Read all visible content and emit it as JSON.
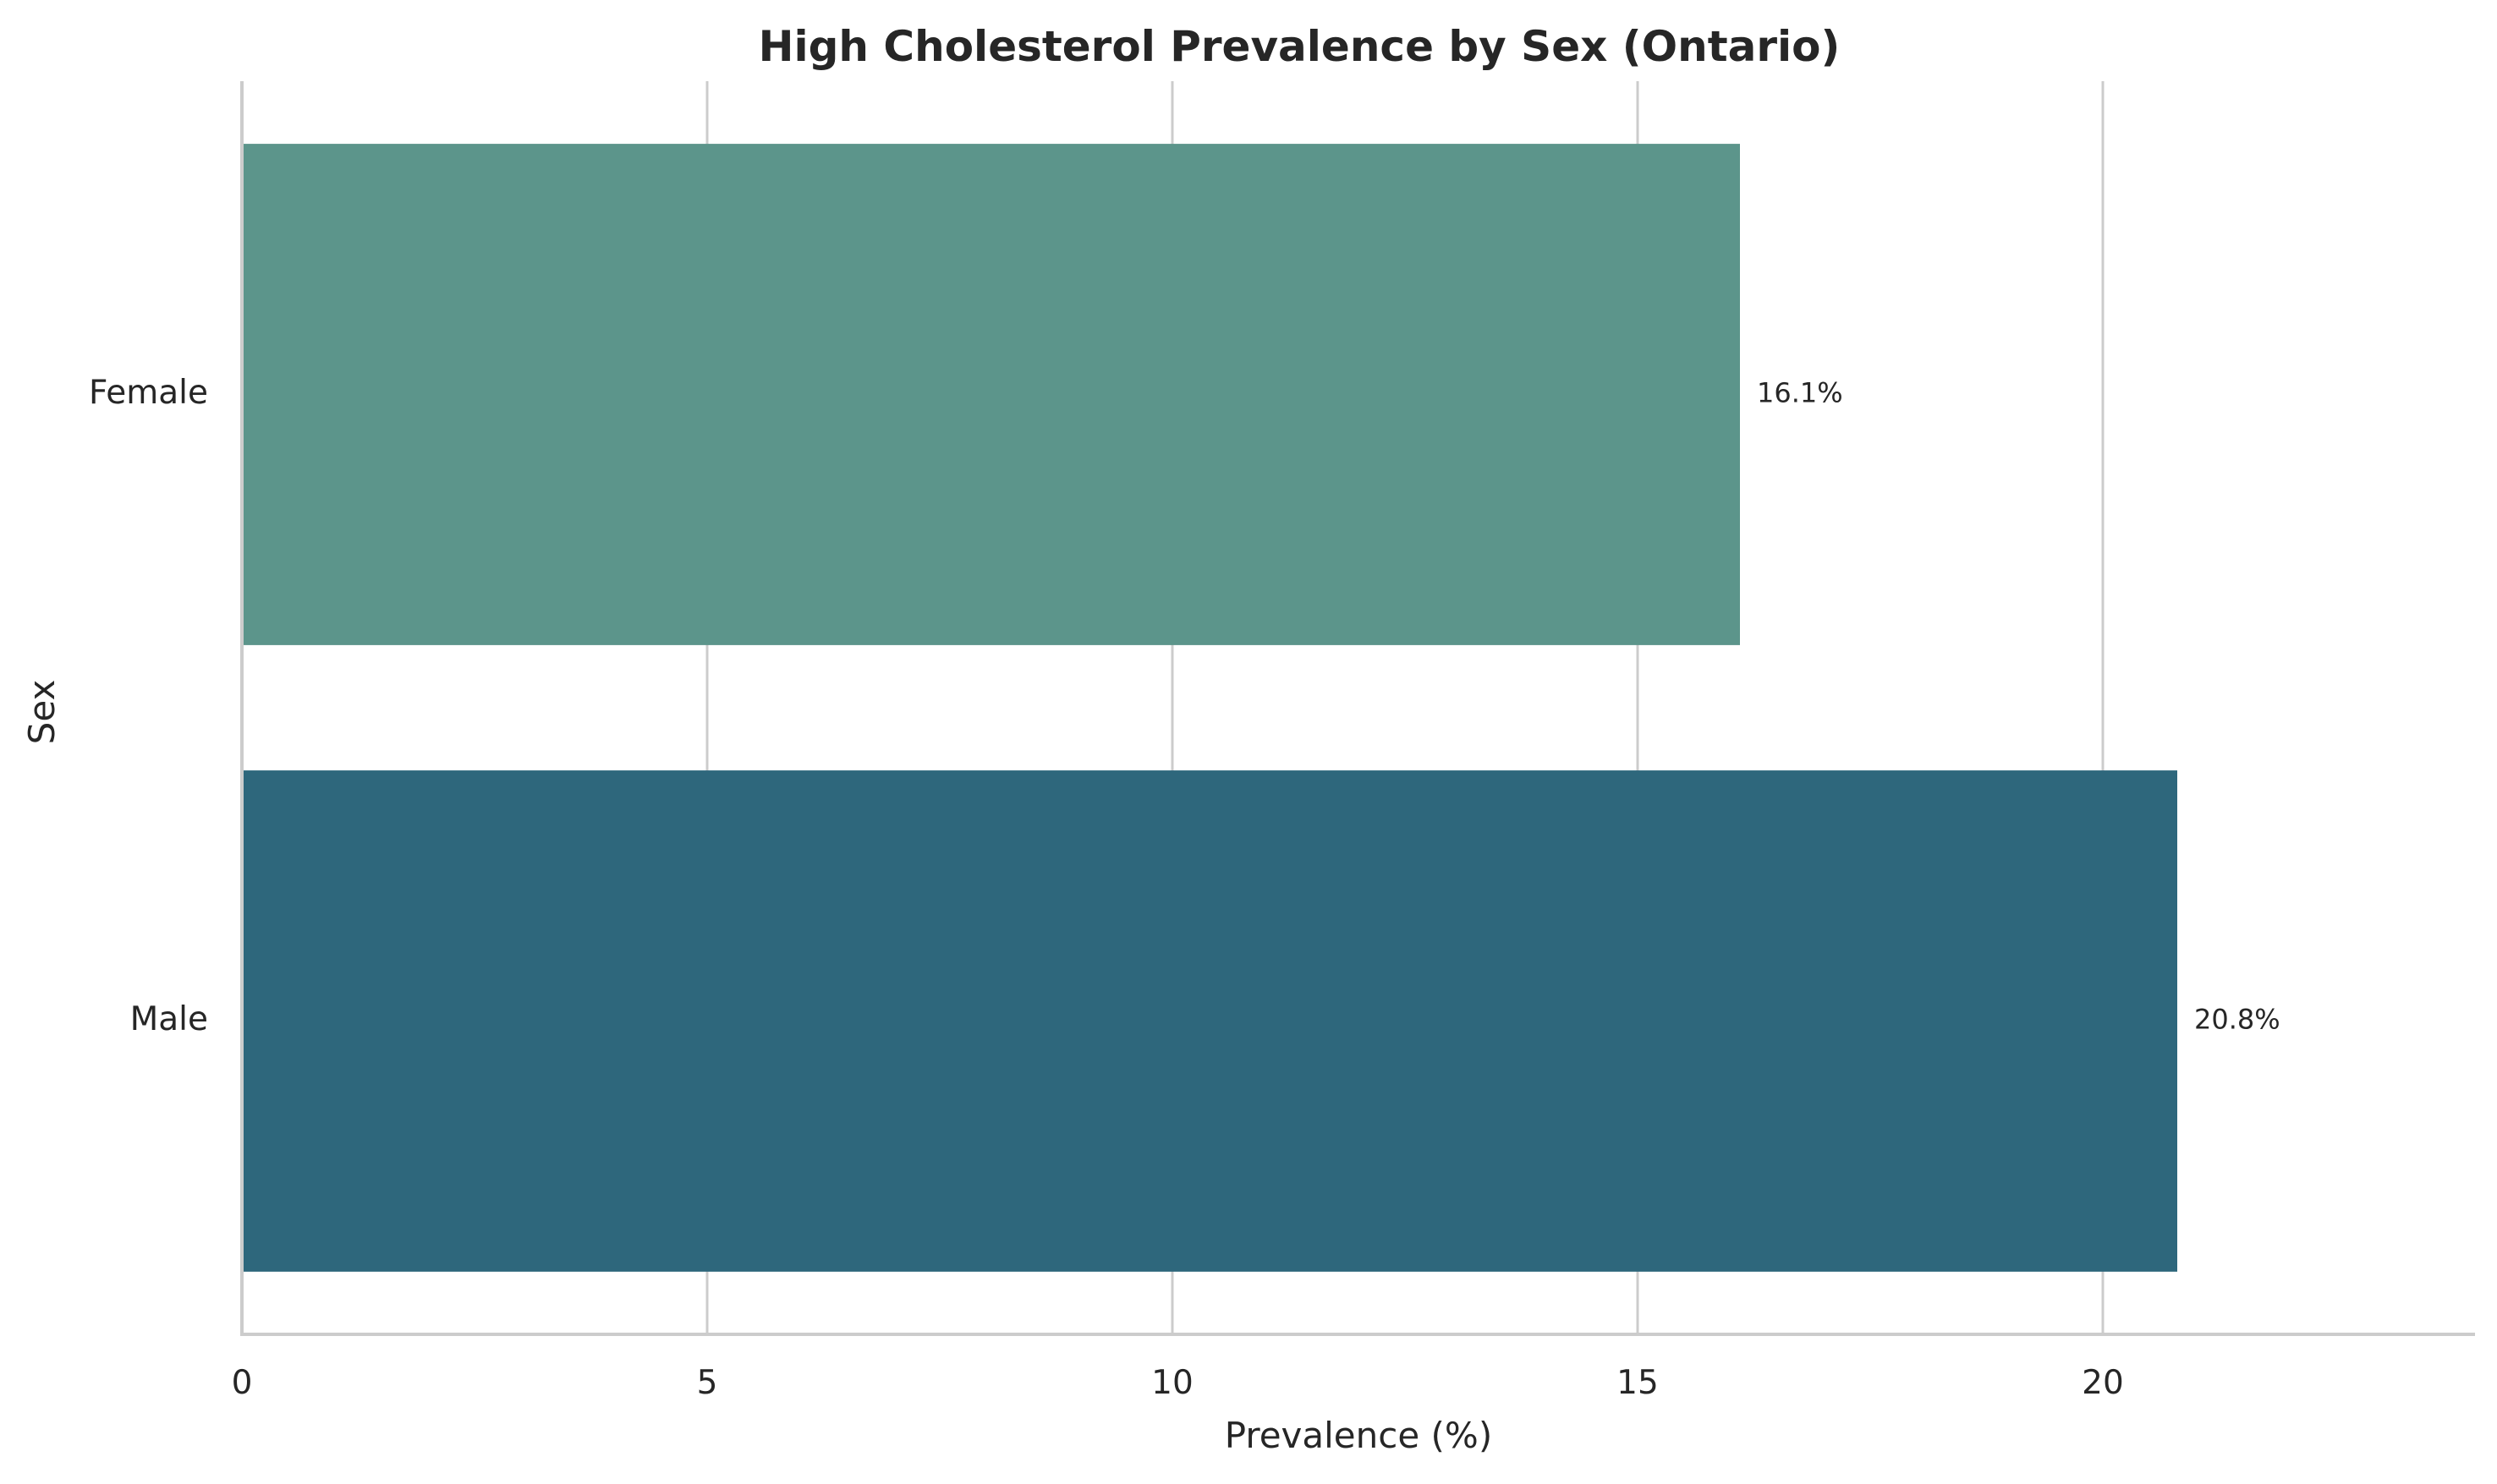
{
  "chart_data": {
    "type": "bar",
    "orientation": "horizontal",
    "title": "High Cholesterol Prevalence by Sex (Ontario)",
    "xlabel": "Prevalence (%)",
    "ylabel": "Sex",
    "categories": [
      "Female",
      "Male"
    ],
    "values": [
      16.1,
      20.8
    ],
    "value_labels": [
      "16.1%",
      "20.8%"
    ],
    "colors": [
      "#5c958b",
      "#2e677c"
    ],
    "xlim": [
      0,
      24
    ],
    "xticks": [
      0,
      5,
      10,
      15,
      20
    ],
    "grid": "vertical",
    "legend": "none"
  }
}
